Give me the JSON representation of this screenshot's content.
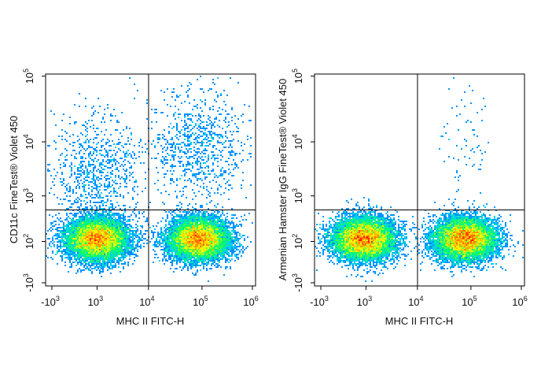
{
  "chart_data": [
    {
      "type": "scatter",
      "subtype": "flow-cytometry-density-dot-plot",
      "xlabel": "MHC II FITC-H",
      "ylabel": "CD11c FineTest® Violet 450",
      "x_ticks": [
        {
          "base": "-10",
          "exp": "3"
        },
        {
          "base": "10",
          "exp": "3"
        },
        {
          "base": "10",
          "exp": "4"
        },
        {
          "base": "10",
          "exp": "5"
        },
        {
          "base": "10",
          "exp": "6"
        }
      ],
      "y_ticks": [
        {
          "base": "-10",
          "exp": "3"
        },
        {
          "base": "10",
          "exp": "2"
        },
        {
          "base": "10",
          "exp": "3"
        },
        {
          "base": "10",
          "exp": "4"
        },
        {
          "base": "10",
          "exp": "5"
        }
      ],
      "x_scale": "biexponential",
      "y_scale": "biexponential",
      "quadrant_gate": {
        "x": 10000,
        "y": 450
      },
      "populations": [
        {
          "x_center": 1000,
          "y_center": 110,
          "density": "high"
        },
        {
          "x_center": 90000,
          "y_center": 110,
          "density": "high"
        },
        {
          "x_center": 1000,
          "y_center": 2000,
          "density": "sparse"
        },
        {
          "x_center": 90000,
          "y_center": 6000,
          "density": "sparse"
        }
      ],
      "colormap": [
        "#0000ff",
        "#00c8ff",
        "#00ff64",
        "#ffff00",
        "#ff8000",
        "#ff0000"
      ]
    },
    {
      "type": "scatter",
      "subtype": "flow-cytometry-density-dot-plot",
      "xlabel": "MHC II FITC-H",
      "ylabel": "Armenian Hamster IgG FineTest® Violet 450",
      "x_ticks": [
        {
          "base": "-10",
          "exp": "3"
        },
        {
          "base": "10",
          "exp": "3"
        },
        {
          "base": "10",
          "exp": "4"
        },
        {
          "base": "10",
          "exp": "5"
        },
        {
          "base": "10",
          "exp": "6"
        }
      ],
      "y_ticks": [
        {
          "base": "-10",
          "exp": "3"
        },
        {
          "base": "10",
          "exp": "2"
        },
        {
          "base": "10",
          "exp": "3"
        },
        {
          "base": "10",
          "exp": "4"
        },
        {
          "base": "10",
          "exp": "5"
        }
      ],
      "x_scale": "biexponential",
      "y_scale": "biexponential",
      "quadrant_gate": {
        "x": 10000,
        "y": 450
      },
      "populations": [
        {
          "x_center": 900,
          "y_center": 110,
          "density": "high"
        },
        {
          "x_center": 80000,
          "y_center": 110,
          "density": "high"
        },
        {
          "x_center": 80000,
          "y_center": 8000,
          "density": "very sparse"
        }
      ],
      "colormap": [
        "#0000ff",
        "#00c8ff",
        "#00ff64",
        "#ffff00",
        "#ff8000",
        "#ff0000"
      ]
    }
  ]
}
